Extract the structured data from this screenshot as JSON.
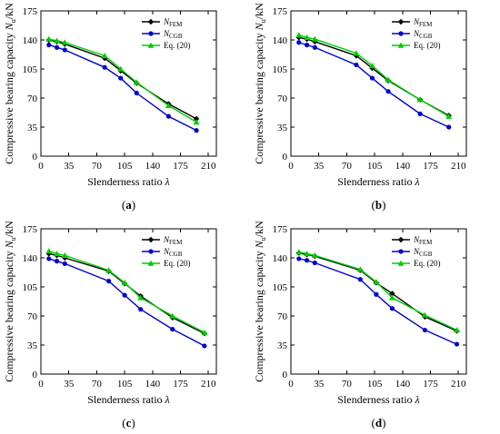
{
  "chart_data": [
    {
      "type": "line",
      "panel_label": "a",
      "xlabel": "Slenderness ratio λ",
      "ylabel": "Compressive bearing capacity Nu/kN",
      "xlim": [
        0,
        220
      ],
      "ylim": [
        0,
        175
      ],
      "xticks": [
        0,
        35,
        70,
        105,
        140,
        175,
        210
      ],
      "yticks": [
        0,
        35,
        70,
        105,
        140,
        175
      ],
      "grid": false,
      "legend_position": "top-right",
      "series": [
        {
          "name": "N_FEM",
          "color": "#000000",
          "marker": "diamond",
          "x": [
            10,
            20,
            30,
            80,
            100,
            120,
            160,
            195
          ],
          "y": [
            140,
            138,
            135,
            118,
            103,
            88,
            63,
            45
          ]
        },
        {
          "name": "N_CGB",
          "color": "#0000cc",
          "marker": "circle",
          "x": [
            10,
            20,
            30,
            80,
            100,
            120,
            160,
            195
          ],
          "y": [
            134,
            131,
            128,
            107,
            94,
            76,
            48,
            31
          ]
        },
        {
          "name": "Eq. (20)",
          "color": "#00cc00",
          "marker": "triangle",
          "x": [
            10,
            20,
            30,
            80,
            100,
            120,
            160,
            195
          ],
          "y": [
            141,
            139,
            137,
            121,
            105,
            89,
            61,
            41
          ]
        }
      ]
    },
    {
      "type": "line",
      "panel_label": "b",
      "xlabel": "Slenderness ratio λ",
      "ylabel": "Compressive bearing capacity Nu/kN",
      "xlim": [
        0,
        220
      ],
      "ylim": [
        0,
        175
      ],
      "xticks": [
        0,
        35,
        70,
        105,
        140,
        175,
        210
      ],
      "yticks": [
        0,
        35,
        70,
        105,
        140,
        175
      ],
      "grid": false,
      "legend_position": "top-right",
      "series": [
        {
          "name": "N_FEM",
          "color": "#000000",
          "marker": "diamond",
          "x": [
            10,
            20,
            30,
            82,
            102,
            122,
            162,
            198
          ],
          "y": [
            143,
            141,
            138,
            121,
            106,
            91,
            68,
            49
          ]
        },
        {
          "name": "N_CGB",
          "color": "#0000cc",
          "marker": "circle",
          "x": [
            10,
            20,
            30,
            82,
            102,
            122,
            162,
            198
          ],
          "y": [
            137,
            134,
            131,
            110,
            94,
            78,
            51,
            35
          ]
        },
        {
          "name": "Eq. (20)",
          "color": "#00cc00",
          "marker": "triangle",
          "x": [
            10,
            20,
            30,
            82,
            102,
            122,
            162,
            198
          ],
          "y": [
            146,
            143,
            141,
            124,
            109,
            92,
            68,
            48
          ]
        }
      ]
    },
    {
      "type": "line",
      "panel_label": "c",
      "xlabel": "Slenderness ratio λ",
      "ylabel": "Compressive bearing capacity Nu/kN",
      "xlim": [
        0,
        220
      ],
      "ylim": [
        0,
        175
      ],
      "xticks": [
        0,
        35,
        70,
        105,
        140,
        175,
        210
      ],
      "yticks": [
        0,
        35,
        70,
        105,
        140,
        175
      ],
      "grid": false,
      "legend_position": "top-right",
      "series": [
        {
          "name": "N_FEM",
          "color": "#000000",
          "marker": "diamond",
          "x": [
            10,
            20,
            30,
            85,
            105,
            125,
            165,
            205
          ],
          "y": [
            145,
            143,
            140,
            124,
            109,
            94,
            68,
            49
          ]
        },
        {
          "name": "N_CGB",
          "color": "#0000cc",
          "marker": "circle",
          "x": [
            10,
            20,
            30,
            85,
            105,
            125,
            165,
            205
          ],
          "y": [
            139,
            136,
            133,
            112,
            95,
            78,
            54,
            34
          ]
        },
        {
          "name": "Eq. (20)",
          "color": "#00cc00",
          "marker": "triangle",
          "x": [
            10,
            20,
            30,
            85,
            105,
            125,
            165,
            205
          ],
          "y": [
            148,
            145,
            143,
            125,
            110,
            92,
            70,
            50
          ]
        }
      ]
    },
    {
      "type": "line",
      "panel_label": "d",
      "xlabel": "Slenderness ratio λ",
      "ylabel": "Compressive bearing capacity Nu/kN",
      "xlim": [
        0,
        220
      ],
      "ylim": [
        0,
        175
      ],
      "xticks": [
        0,
        35,
        70,
        105,
        140,
        175,
        210
      ],
      "yticks": [
        0,
        35,
        70,
        105,
        140,
        175
      ],
      "grid": false,
      "legend_position": "top-right",
      "series": [
        {
          "name": "N_FEM",
          "color": "#000000",
          "marker": "diamond",
          "x": [
            10,
            20,
            30,
            87,
            107,
            127,
            168,
            208
          ],
          "y": [
            146,
            144,
            142,
            125,
            110,
            97,
            69,
            52
          ]
        },
        {
          "name": "N_CGB",
          "color": "#0000cc",
          "marker": "circle",
          "x": [
            10,
            20,
            30,
            87,
            107,
            127,
            168,
            208
          ],
          "y": [
            139,
            137,
            134,
            114,
            96,
            79,
            53,
            36
          ]
        },
        {
          "name": "Eq. (20)",
          "color": "#00cc00",
          "marker": "triangle",
          "x": [
            10,
            20,
            30,
            87,
            107,
            127,
            168,
            208
          ],
          "y": [
            147,
            145,
            143,
            126,
            111,
            92,
            71,
            53
          ]
        }
      ]
    }
  ]
}
